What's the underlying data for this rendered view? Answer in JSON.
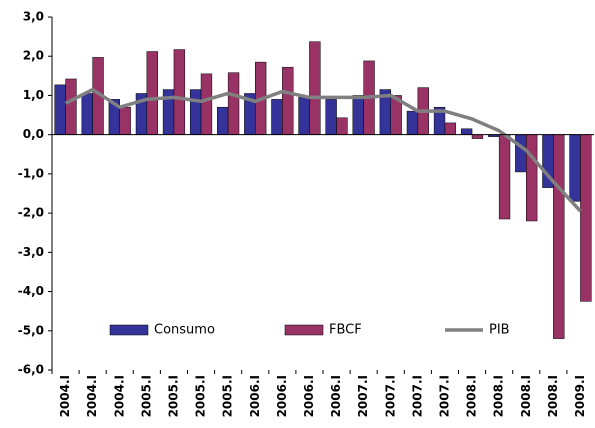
{
  "chart_data": {
    "type": "bar",
    "categories": [
      "2004.I",
      "2004.I",
      "2004.I",
      "2005.I",
      "2005.I",
      "2005.I",
      "2005.I",
      "2006.I",
      "2006.I",
      "2006.I",
      "2006.I",
      "2007.I",
      "2007.I",
      "2007.I",
      "2007.I",
      "2008.I",
      "2008.I",
      "2008.I",
      "2008.I",
      "2009.I"
    ],
    "series": [
      {
        "name": "Consumo",
        "color": "#333399",
        "values": [
          1.27,
          1.05,
          0.9,
          1.05,
          1.15,
          1.15,
          0.7,
          1.05,
          0.9,
          0.95,
          0.9,
          1.0,
          1.15,
          0.6,
          0.7,
          0.15,
          -0.05,
          -0.95,
          -1.35,
          -1.7
        ]
      },
      {
        "name": "FBCF",
        "color": "#993366",
        "values": [
          1.42,
          1.97,
          0.7,
          2.12,
          2.17,
          1.55,
          1.58,
          1.85,
          1.72,
          2.37,
          0.43,
          1.88,
          1.0,
          1.2,
          0.3,
          -0.1,
          -2.15,
          -2.2,
          -5.2,
          -4.25
        ]
      },
      {
        "name": "PIB",
        "type": "line",
        "color": "#808080",
        "values": [
          0.8,
          1.15,
          0.7,
          0.9,
          0.95,
          0.85,
          1.05,
          0.85,
          1.1,
          0.95,
          0.95,
          0.95,
          1.0,
          0.6,
          0.6,
          0.4,
          0.1,
          -0.4,
          -1.2,
          -1.95
        ]
      }
    ],
    "ylim": [
      -6,
      3
    ],
    "yticks": [
      {
        "value": -6,
        "label": "-6,0"
      },
      {
        "value": -5,
        "label": "-5,0"
      },
      {
        "value": -4,
        "label": "-4,0"
      },
      {
        "value": -3,
        "label": "-3,0"
      },
      {
        "value": -2,
        "label": "-2,0"
      },
      {
        "value": -1,
        "label": "-1,0"
      },
      {
        "value": 0,
        "label": "0,0"
      },
      {
        "value": 1,
        "label": "1,0"
      },
      {
        "value": 2,
        "label": "2,0"
      },
      {
        "value": 3,
        "label": "3,0"
      }
    ],
    "grid": false,
    "legend": "bottom"
  }
}
